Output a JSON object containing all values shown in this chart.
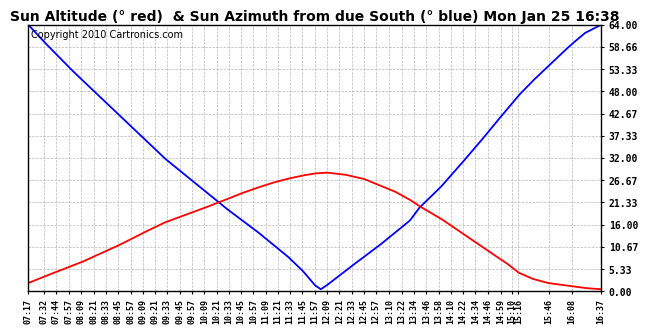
{
  "title": "Sun Altitude (° red)  & Sun Azimuth from due South (° blue) Mon Jan 25 16:38",
  "copyright": "Copyright 2010 Cartronics.com",
  "ymin": 0.0,
  "ymax": 64.0,
  "yticks": [
    0.0,
    5.33,
    10.67,
    16.0,
    21.33,
    26.67,
    32.0,
    37.33,
    42.67,
    48.0,
    53.33,
    58.66,
    64.0
  ],
  "ytick_labels": [
    "0.00",
    "5.33",
    "10.67",
    "16.00",
    "21.33",
    "26.67",
    "32.00",
    "37.33",
    "42.67",
    "48.00",
    "53.33",
    "58.66",
    "64.00"
  ],
  "xtick_labels": [
    "07:17",
    "07:32",
    "07:44",
    "07:57",
    "08:09",
    "08:21",
    "08:33",
    "08:45",
    "08:57",
    "09:09",
    "09:21",
    "09:33",
    "09:45",
    "09:57",
    "10:09",
    "10:21",
    "10:33",
    "10:45",
    "10:57",
    "11:09",
    "11:21",
    "11:33",
    "11:45",
    "11:57",
    "12:09",
    "12:21",
    "12:33",
    "12:45",
    "12:57",
    "13:10",
    "13:22",
    "13:34",
    "13:46",
    "13:58",
    "14:10",
    "14:22",
    "14:34",
    "14:46",
    "14:59",
    "15:10",
    "15:16",
    "15:46",
    "16:08",
    "16:37"
  ],
  "altitude_color": "#ff0000",
  "azimuth_color": "#0000ff",
  "background_color": "#ffffff",
  "grid_color": "#b0b0b0",
  "title_fontsize": 10,
  "copyright_fontsize": 7,
  "altitude_keypoints_x": [
    7.2833,
    7.5333,
    8.15,
    8.75,
    9.15,
    9.5,
    10.15,
    10.5,
    10.75,
    11.0,
    11.25,
    11.5,
    11.75,
    11.95,
    12.15,
    12.45,
    12.75,
    13.0,
    13.25,
    13.5,
    13.65,
    14.0,
    14.3,
    14.65,
    14.9,
    15.1,
    15.27,
    15.5,
    15.75,
    16.0,
    16.15,
    16.35,
    16.617
  ],
  "altitude_keypoints_y": [
    2.0,
    3.5,
    7.0,
    11.0,
    14.0,
    16.5,
    20.0,
    22.0,
    23.5,
    24.8,
    26.0,
    27.0,
    27.8,
    28.3,
    28.5,
    28.0,
    27.0,
    25.5,
    24.0,
    22.0,
    20.5,
    17.5,
    14.5,
    11.0,
    8.5,
    6.5,
    4.5,
    3.0,
    2.0,
    1.5,
    1.2,
    0.8,
    0.5
  ],
  "azimuth_keypoints_x": [
    7.2833,
    7.5333,
    7.733,
    8.0,
    8.5,
    9.0,
    9.5,
    10.0,
    10.5,
    11.0,
    11.5,
    11.75,
    11.95,
    12.05,
    12.15,
    12.5,
    13.0,
    13.5,
    13.65,
    14.0,
    14.3,
    14.65,
    14.9,
    15.1,
    15.27,
    15.5,
    15.75,
    16.0,
    16.15,
    16.35,
    16.617
  ],
  "azimuth_keypoints_y": [
    64.0,
    60.0,
    57.0,
    53.0,
    46.0,
    39.0,
    32.0,
    26.0,
    20.0,
    14.5,
    8.5,
    5.0,
    1.5,
    0.5,
    1.5,
    5.5,
    11.0,
    17.0,
    20.0,
    25.0,
    30.0,
    36.0,
    40.5,
    44.0,
    47.0,
    50.5,
    54.0,
    57.5,
    59.5,
    62.0,
    64.0
  ]
}
